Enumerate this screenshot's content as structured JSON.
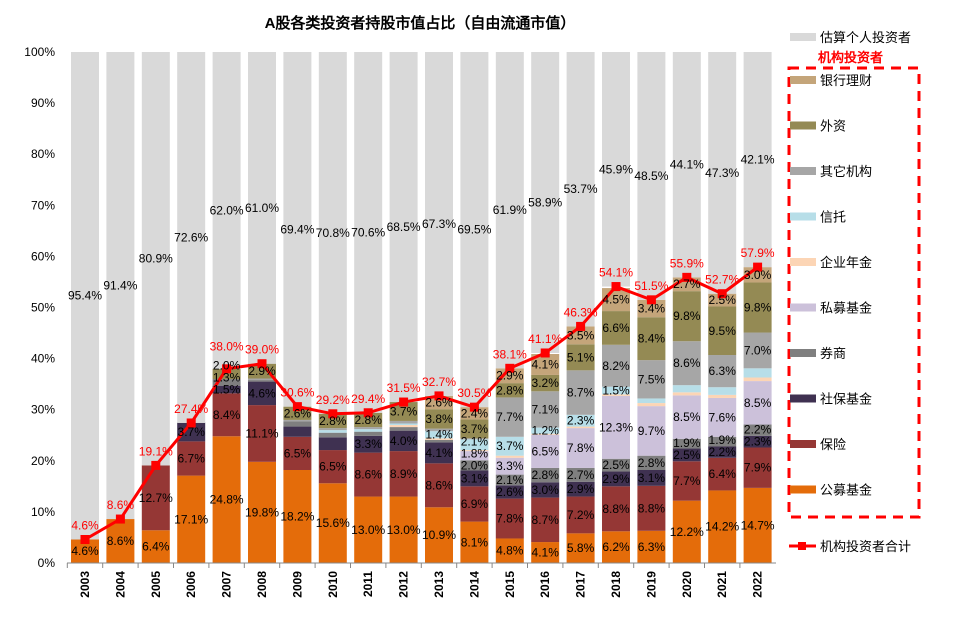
{
  "chart_data": {
    "type": "bar",
    "stacked": true,
    "title": "A股各类投资者持股市值占比（自由流通市值）",
    "xlabel": "",
    "ylabel": "",
    "ylim": [
      0,
      100
    ],
    "y_ticks": [
      "0%",
      "10%",
      "20%",
      "30%",
      "40%",
      "50%",
      "60%",
      "70%",
      "80%",
      "90%",
      "100%"
    ],
    "grid": false,
    "legend_position": "right",
    "legend_group_title": "机构投资者",
    "categories": [
      "2003",
      "2004",
      "2005",
      "2006",
      "2007",
      "2008",
      "2009",
      "2010",
      "2011",
      "2012",
      "2013",
      "2014",
      "2015",
      "2016",
      "2017",
      "2018",
      "2019",
      "2020",
      "2021",
      "2022"
    ],
    "series": [
      {
        "name": "公募基金",
        "color": "#E46C0A",
        "values": [
          4.6,
          8.6,
          6.4,
          17.1,
          24.8,
          19.8,
          18.2,
          15.6,
          13.0,
          13.0,
          10.9,
          8.1,
          4.8,
          4.1,
          5.8,
          6.2,
          6.3,
          12.2,
          14.2,
          14.7
        ],
        "labels": [
          "4.6%",
          "8.6%",
          "6.4%",
          "17.1%",
          "24.8%",
          "19.8%",
          "18.2%",
          "15.6%",
          "13.0%",
          "13.0%",
          "10.9%",
          "8.1%",
          "4.8%",
          "4.1%",
          "5.8%",
          "6.2%",
          "6.3%",
          "12.2%",
          "14.2%",
          "14.7%"
        ]
      },
      {
        "name": "保险",
        "color": "#953735",
        "values": [
          0,
          0,
          12.7,
          6.7,
          8.4,
          11.1,
          6.5,
          6.5,
          8.6,
          8.9,
          8.6,
          6.9,
          7.8,
          8.7,
          7.2,
          8.8,
          8.8,
          7.7,
          6.4,
          7.9
        ],
        "labels": [
          "",
          "",
          "12.7%",
          "6.7%",
          "8.4%",
          "11.1%",
          "6.5%",
          "6.5%",
          "8.6%",
          "8.9%",
          "8.6%",
          "6.9%",
          "7.8%",
          "8.7%",
          "7.2%",
          "8.8%",
          "8.8%",
          "7.7%",
          "6.4%",
          "7.9%"
        ]
      },
      {
        "name": "社保基金",
        "color": "#3F3151",
        "values": [
          0,
          0,
          0,
          3.7,
          1.5,
          4.6,
          2.0,
          2.5,
          3.3,
          4.0,
          4.1,
          3.1,
          2.6,
          3.0,
          2.9,
          2.9,
          3.1,
          2.5,
          2.2,
          2.3
        ],
        "labels": [
          "",
          "",
          "",
          "3.7%",
          "1.5%",
          "4.6%",
          "",
          "",
          "3.3%",
          "4.0%",
          "4.1%",
          "3.1%",
          "2.6%",
          "3.0%",
          "2.9%",
          "2.9%",
          "3.1%",
          "2.5%",
          "2.2%",
          "2.3%"
        ]
      },
      {
        "name": "券商",
        "color": "#7F7F7F",
        "values": [
          0,
          0,
          0,
          0,
          1.3,
          0.3,
          1.0,
          0.9,
          0.8,
          0.7,
          0.5,
          2.0,
          2.1,
          2.8,
          2.7,
          2.5,
          2.8,
          1.9,
          1.9,
          2.2
        ],
        "labels": [
          "",
          "",
          "",
          "",
          "1.3%",
          "",
          "",
          "",
          "",
          "",
          "",
          "2.0%",
          "2.1%",
          "2.8%",
          "2.7%",
          "2.5%",
          "2.8%",
          "1.9%",
          "1.9%",
          "2.2%"
        ]
      },
      {
        "name": "私募基金",
        "color": "#CCC1DA",
        "values": [
          0,
          0,
          0,
          0,
          0,
          0,
          0,
          0,
          0,
          0,
          0,
          1.8,
          3.3,
          6.5,
          7.8,
          12.3,
          9.7,
          8.5,
          7.6,
          8.5
        ],
        "labels": [
          "",
          "",
          "",
          "",
          "",
          "",
          "",
          "",
          "",
          "",
          "",
          "1.8%",
          "3.3%",
          "6.5%",
          "7.8%",
          "12.3%",
          "9.7%",
          "8.5%",
          "7.6%",
          "8.5%"
        ]
      },
      {
        "name": "企业年金",
        "color": "#FCD5B5",
        "values": [
          0,
          0,
          0,
          0,
          0,
          0,
          0,
          0,
          0,
          0.4,
          0.3,
          0.2,
          0.4,
          0.2,
          0.3,
          0.3,
          0.6,
          0.6,
          0.6,
          0.7
        ],
        "labels": [
          "",
          "",
          "",
          "",
          "",
          "",
          "",
          "",
          "",
          "",
          "",
          "",
          "",
          "",
          "",
          "",
          "",
          "",
          "",
          ""
        ]
      },
      {
        "name": "信托",
        "color": "#B7DEE8",
        "values": [
          0,
          0,
          0,
          0,
          0,
          0,
          0,
          0.5,
          0.5,
          0.3,
          1.4,
          2.1,
          3.7,
          1.2,
          2.3,
          1.5,
          0.9,
          1.4,
          1.5,
          1.8
        ],
        "labels": [
          "",
          "",
          "",
          "",
          "",
          "",
          "",
          "",
          "",
          "",
          "1.4%",
          "2.1%",
          "3.7%",
          "1.2%",
          "2.3%",
          "1.5%",
          "",
          "",
          "",
          ""
        ]
      },
      {
        "name": "其它机构",
        "color": "#A6A6A6",
        "values": [
          0,
          0,
          0,
          0,
          0,
          0.3,
          0.3,
          0.4,
          0.4,
          0.5,
          0.5,
          0.2,
          7.7,
          7.1,
          8.7,
          8.2,
          7.5,
          8.6,
          6.3,
          7.0
        ],
        "labels": [
          "",
          "",
          "",
          "",
          "",
          "",
          "",
          "",
          "",
          "",
          "",
          "",
          "7.7%",
          "7.1%",
          "8.7%",
          "8.2%",
          "7.5%",
          "8.6%",
          "6.3%",
          "7.0%"
        ]
      },
      {
        "name": "外资",
        "color": "#948A54",
        "values": [
          0,
          0,
          0,
          0,
          2.0,
          2.9,
          2.6,
          2.8,
          2.8,
          3.7,
          3.8,
          3.7,
          2.8,
          3.2,
          5.1,
          6.6,
          8.4,
          9.8,
          9.5,
          9.8
        ],
        "labels": [
          "",
          "",
          "",
          "",
          "2.0%",
          "2.9%",
          "2.6%",
          "2.8%",
          "2.8%",
          "3.7%",
          "3.8%",
          "3.7%",
          "2.8%",
          "3.2%",
          "5.1%",
          "6.6%",
          "8.4%",
          "9.8%",
          "9.5%",
          "9.8%"
        ]
      },
      {
        "name": "银行理财",
        "color": "#C4A57A",
        "values": [
          0,
          0,
          0,
          0,
          0,
          0,
          0,
          0,
          0,
          0,
          2.6,
          2.4,
          2.9,
          4.1,
          3.5,
          4.5,
          3.4,
          2.7,
          2.5,
          3.0
        ],
        "labels": [
          "",
          "",
          "",
          "",
          "",
          "",
          "",
          "",
          "",
          "",
          "2.6%",
          "2.4%",
          "2.9%",
          "4.1%",
          "3.5%",
          "4.5%",
          "3.4%",
          "2.7%",
          "2.5%",
          "3.0%"
        ]
      }
    ],
    "individual": {
      "name": "估算个人投资者",
      "color": "#D9D9D9",
      "values": [
        95.4,
        91.4,
        80.9,
        72.6,
        62.0,
        61.0,
        69.4,
        70.8,
        70.6,
        68.5,
        67.3,
        69.5,
        61.9,
        58.9,
        53.7,
        45.9,
        48.5,
        44.1,
        47.3,
        42.1
      ],
      "labels": [
        "95.4%",
        "91.4%",
        "80.9%",
        "72.6%",
        "62.0%",
        "61.0%",
        "69.4%",
        "70.8%",
        "70.6%",
        "68.5%",
        "67.3%",
        "69.5%",
        "61.9%",
        "58.9%",
        "53.7%",
        "45.9%",
        "48.5%",
        "44.1%",
        "47.3%",
        "42.1%"
      ]
    },
    "total_line": {
      "name": "机构投资者合计",
      "color": "#FF0000",
      "values": [
        4.6,
        8.6,
        19.1,
        27.4,
        38.0,
        39.0,
        30.6,
        29.2,
        29.4,
        31.5,
        32.7,
        30.5,
        38.1,
        41.1,
        46.3,
        54.1,
        51.5,
        55.9,
        52.7,
        57.9
      ],
      "labels": [
        "4.6%",
        "8.6%",
        "19.1%",
        "27.4%",
        "38.0%",
        "39.0%",
        "30.6%",
        "29.2%",
        "29.4%",
        "31.5%",
        "32.7%",
        "30.5%",
        "38.1%",
        "41.1%",
        "46.3%",
        "54.1%",
        "51.5%",
        "55.9%",
        "52.7%",
        "57.9%"
      ]
    }
  }
}
